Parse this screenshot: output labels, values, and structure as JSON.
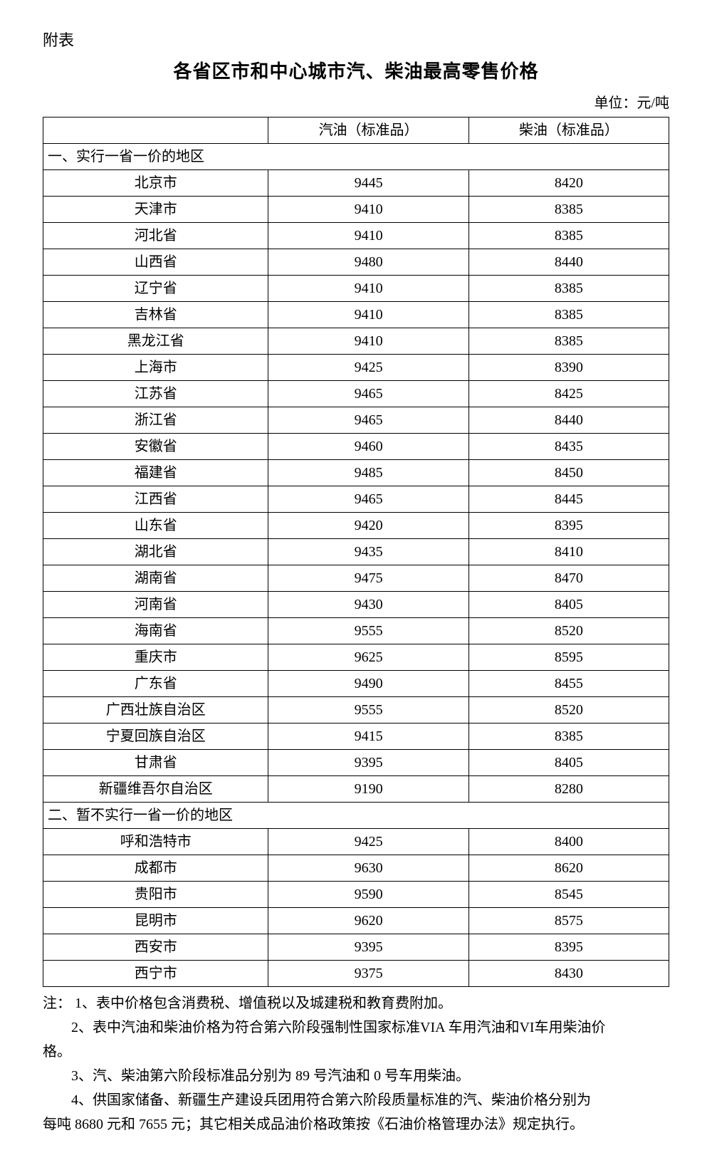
{
  "appendix_label": "附表",
  "title": "各省区市和中心城市汽、柴油最高零售价格",
  "unit": "单位：元/吨",
  "headers": {
    "blank": "",
    "gasoline": "汽油（标准品）",
    "diesel": "柴油（标准品）"
  },
  "section1_title": "一、实行一省一价的地区",
  "section1_rows": [
    {
      "region": "北京市",
      "gas": "9445",
      "diesel": "8420"
    },
    {
      "region": "天津市",
      "gas": "9410",
      "diesel": "8385"
    },
    {
      "region": "河北省",
      "gas": "9410",
      "diesel": "8385"
    },
    {
      "region": "山西省",
      "gas": "9480",
      "diesel": "8440"
    },
    {
      "region": "辽宁省",
      "gas": "9410",
      "diesel": "8385"
    },
    {
      "region": "吉林省",
      "gas": "9410",
      "diesel": "8385"
    },
    {
      "region": "黑龙江省",
      "gas": "9410",
      "diesel": "8385"
    },
    {
      "region": "上海市",
      "gas": "9425",
      "diesel": "8390"
    },
    {
      "region": "江苏省",
      "gas": "9465",
      "diesel": "8425"
    },
    {
      "region": "浙江省",
      "gas": "9465",
      "diesel": "8440"
    },
    {
      "region": "安徽省",
      "gas": "9460",
      "diesel": "8435"
    },
    {
      "region": "福建省",
      "gas": "9485",
      "diesel": "8450"
    },
    {
      "region": "江西省",
      "gas": "9465",
      "diesel": "8445"
    },
    {
      "region": "山东省",
      "gas": "9420",
      "diesel": "8395"
    },
    {
      "region": "湖北省",
      "gas": "9435",
      "diesel": "8410"
    },
    {
      "region": "湖南省",
      "gas": "9475",
      "diesel": "8470"
    },
    {
      "region": "河南省",
      "gas": "9430",
      "diesel": "8405"
    },
    {
      "region": "海南省",
      "gas": "9555",
      "diesel": "8520"
    },
    {
      "region": "重庆市",
      "gas": "9625",
      "diesel": "8595"
    },
    {
      "region": "广东省",
      "gas": "9490",
      "diesel": "8455"
    },
    {
      "region": "广西壮族自治区",
      "gas": "9555",
      "diesel": "8520"
    },
    {
      "region": "宁夏回族自治区",
      "gas": "9415",
      "diesel": "8385"
    },
    {
      "region": "甘肃省",
      "gas": "9395",
      "diesel": "8405"
    },
    {
      "region": "新疆维吾尔自治区",
      "gas": "9190",
      "diesel": "8280"
    }
  ],
  "section2_title": "二、暂不实行一省一价的地区",
  "section2_rows": [
    {
      "region": "呼和浩特市",
      "gas": "9425",
      "diesel": "8400"
    },
    {
      "region": "成都市",
      "gas": "9630",
      "diesel": "8620"
    },
    {
      "region": "贵阳市",
      "gas": "9590",
      "diesel": "8545"
    },
    {
      "region": "昆明市",
      "gas": "9620",
      "diesel": "8575"
    },
    {
      "region": "西安市",
      "gas": "9395",
      "diesel": "8395"
    },
    {
      "region": "西宁市",
      "gas": "9375",
      "diesel": "8430"
    }
  ],
  "notes": {
    "n1": "注：  1、表中价格包含消费税、增值税以及城建税和教育费附加。",
    "n2a": "2、表中汽油和柴油价格为符合第六阶段强制性国家标准VIA 车用汽油和VI车用柴油价",
    "n2b": "格。",
    "n3": "3、汽、柴油第六阶段标准品分别为 89 号汽油和 0 号车用柴油。",
    "n4a": "4、供国家储备、新疆生产建设兵团用符合第六阶段质量标准的汽、柴油价格分别为",
    "n4b": "每吨 8680 元和 7655 元；其它相关成品油价格政策按《石油价格管理办法》规定执行。"
  }
}
